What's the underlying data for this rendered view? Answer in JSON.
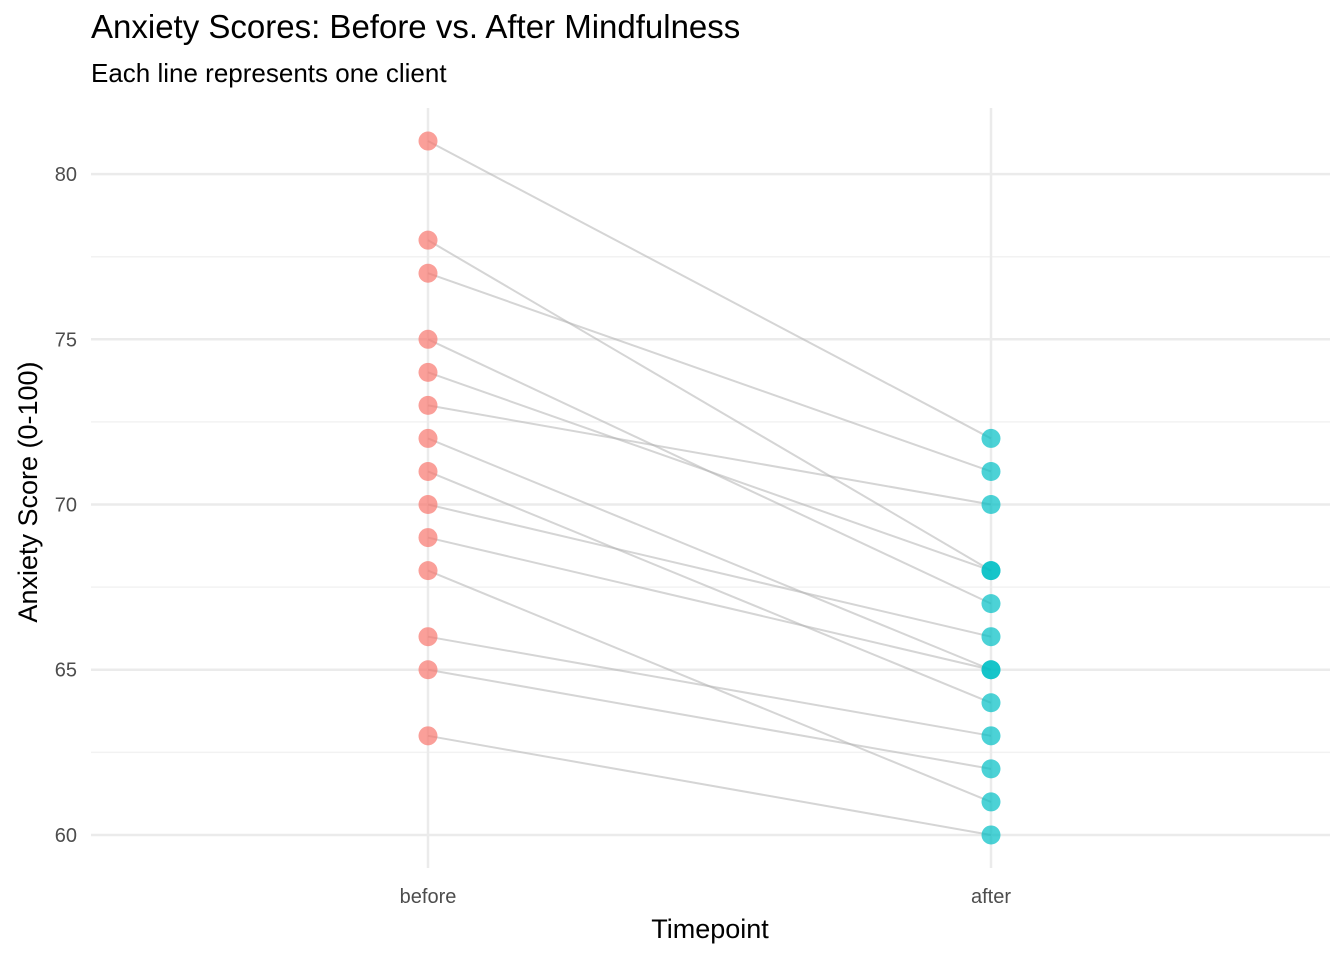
{
  "chart_data": {
    "type": "line",
    "title": "Anxiety Scores: Before vs. After Mindfulness",
    "subtitle": "Each line represents one client",
    "xlabel": "Timepoint",
    "ylabel": "Anxiety Score (0-100)",
    "categories": [
      "before",
      "after"
    ],
    "y_ticks": [
      60,
      65,
      70,
      75,
      80
    ],
    "ylim": [
      59,
      82
    ],
    "grid": true,
    "legend": "none",
    "colors": {
      "before": "#F8766D",
      "after": "#00BFC4",
      "line": "#b3b3b3",
      "grid_major": "#ebebeb",
      "grid_minor": "#f2f2f2"
    },
    "pairs": [
      {
        "before": 81,
        "after": 72
      },
      {
        "before": 78,
        "after": 68
      },
      {
        "before": 77,
        "after": 71
      },
      {
        "before": 75,
        "after": 67
      },
      {
        "before": 74,
        "after": 68
      },
      {
        "before": 73,
        "after": 70
      },
      {
        "before": 72,
        "after": 65
      },
      {
        "before": 71,
        "after": 64
      },
      {
        "before": 70,
        "after": 66
      },
      {
        "before": 69,
        "after": 65
      },
      {
        "before": 68,
        "after": 61
      },
      {
        "before": 66,
        "after": 63
      },
      {
        "before": 65,
        "after": 62
      },
      {
        "before": 63,
        "after": 60
      }
    ]
  }
}
